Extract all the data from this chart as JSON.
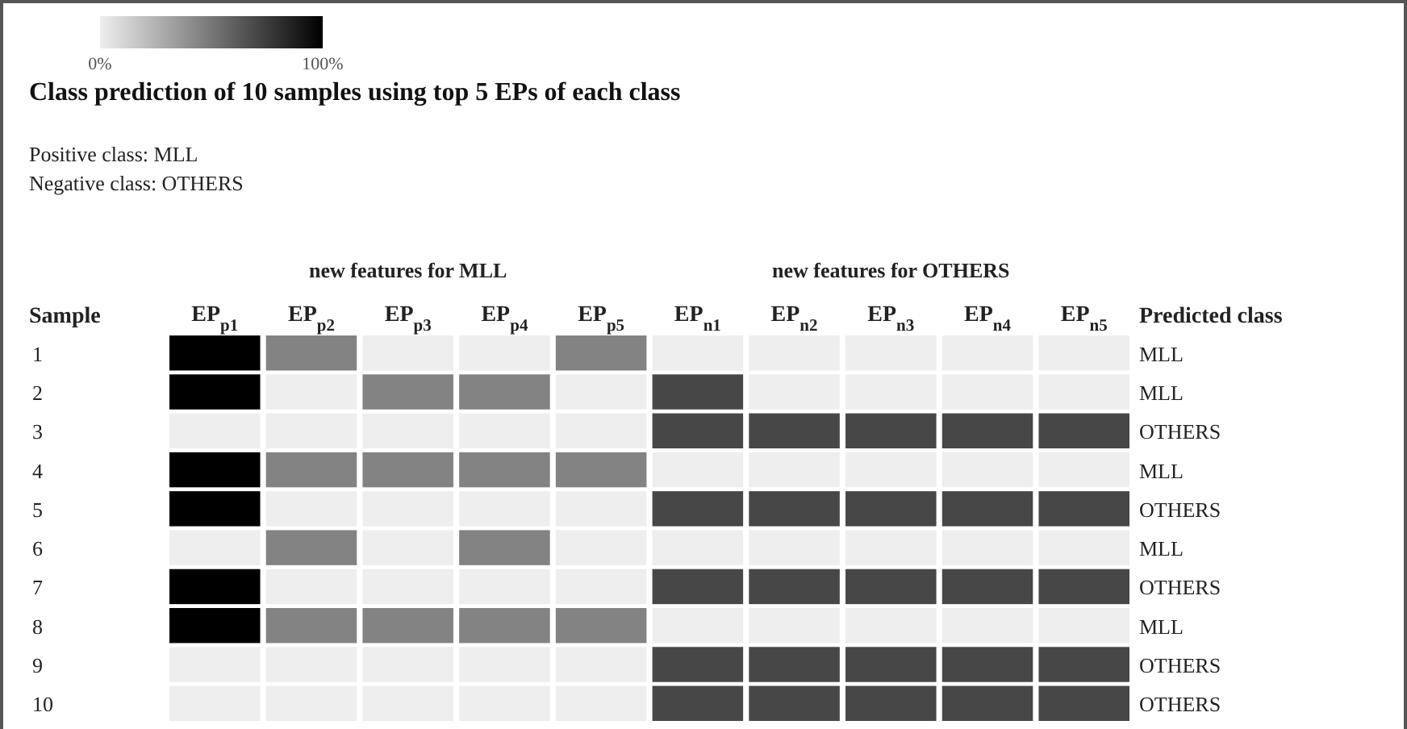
{
  "chart_data": {
    "type": "heatmap",
    "title": "Class prediction of 10 samples using top 5 EPs of each class",
    "annotations": [
      "Positive class: MLL",
      "Negative class: OTHERS",
      "new features for MLL",
      "new features for OTHERS"
    ],
    "ylabel": "Sample",
    "y2label": "Predicted class",
    "categories": [
      "EP$_{p1}$",
      "EP$_{p2}$",
      "EP$_{p3}$",
      "EP$_{p4}$",
      "EP$_{p5}$",
      "EP$_{n1}$",
      "EP$_{n2}$",
      "EP$_{n3}$",
      "EP$_{n4}$",
      "EP$_{n5}$"
    ],
    "y_categories": [
      "1",
      "2",
      "3",
      "4",
      "5",
      "6",
      "7",
      "8",
      "9",
      "10"
    ],
    "y2_categories": [
      "MLL",
      "MLL",
      "OTHERS",
      "MLL",
      "OTHERS",
      "MLL",
      "OTHERS",
      "MLL",
      "OTHERS",
      "OTHERS"
    ],
    "cells": [
      [
        100,
        45,
        0,
        0,
        45,
        0,
        0,
        0,
        0,
        0
      ],
      [
        100,
        0,
        45,
        45,
        0,
        70,
        0,
        0,
        0,
        0
      ],
      [
        0,
        0,
        0,
        0,
        0,
        70,
        70,
        70,
        70,
        70
      ],
      [
        100,
        45,
        45,
        45,
        45,
        0,
        0,
        0,
        0,
        0
      ],
      [
        100,
        0,
        0,
        0,
        0,
        70,
        70,
        70,
        70,
        70
      ],
      [
        0,
        45,
        0,
        45,
        0,
        0,
        0,
        0,
        0,
        0
      ],
      [
        100,
        0,
        0,
        0,
        0,
        70,
        70,
        70,
        70,
        70
      ],
      [
        100,
        45,
        45,
        45,
        45,
        0,
        0,
        0,
        0,
        0
      ],
      [
        0,
        0,
        0,
        0,
        0,
        70,
        70,
        70,
        70,
        70
      ],
      [
        0,
        0,
        0,
        0,
        0,
        70,
        70,
        70,
        70,
        70
      ]
    ],
    "clim": [
      0,
      100
    ],
    "cticks": [
      {
        "value": 0,
        "label": "0%"
      },
      {
        "value": 100,
        "label": "100%"
      }
    ]
  }
}
